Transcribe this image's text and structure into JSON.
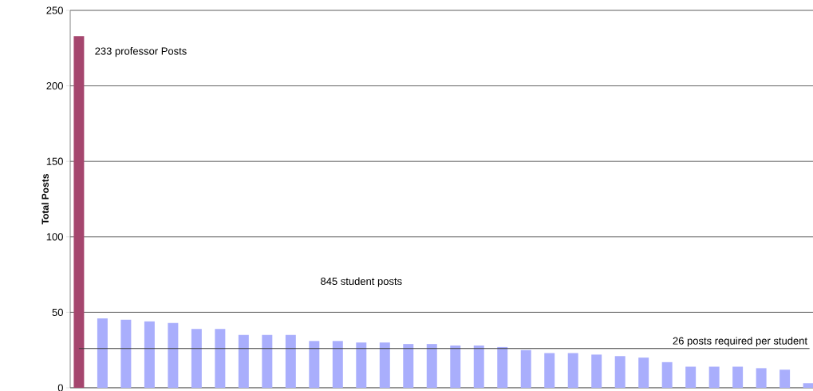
{
  "chart_data": {
    "type": "bar",
    "ylabel": "Total Posts",
    "categories": [
      null,
      null,
      null,
      null,
      null,
      null,
      null,
      null,
      null,
      null,
      null,
      null,
      null,
      null,
      null,
      null,
      null,
      null,
      null,
      null,
      null,
      null,
      null,
      null,
      null,
      null,
      null,
      null,
      null,
      null,
      null,
      null
    ],
    "values": [
      233,
      46,
      45,
      44,
      43,
      39,
      39,
      35,
      35,
      35,
      31,
      31,
      30,
      30,
      29,
      29,
      28,
      28,
      27,
      25,
      23,
      23,
      22,
      21,
      20,
      17,
      14,
      14,
      14,
      13,
      12,
      3
    ],
    "colors": [
      "#a5466e",
      "#a9aefc",
      "#a9aefc",
      "#a9aefc",
      "#a9aefc",
      "#a9aefc",
      "#a9aefc",
      "#a9aefc",
      "#a9aefc",
      "#a9aefc",
      "#a9aefc",
      "#a9aefc",
      "#a9aefc",
      "#a9aefc",
      "#a9aefc",
      "#a9aefc",
      "#a9aefc",
      "#a9aefc",
      "#a9aefc",
      "#a9aefc",
      "#a9aefc",
      "#a9aefc",
      "#a9aefc",
      "#a9aefc",
      "#a9aefc",
      "#a9aefc",
      "#a9aefc",
      "#a9aefc",
      "#a9aefc",
      "#a9aefc",
      "#a9aefc",
      "#a9aefc"
    ],
    "ylim": [
      0,
      250
    ],
    "yticks": [
      0,
      50,
      100,
      150,
      200,
      250
    ],
    "grid": "y",
    "annotations": [
      "233 professor Posts",
      "845 student posts"
    ],
    "ref_lines": [
      {
        "axis": "y",
        "value": 26,
        "label": "26 posts required per student",
        "color": "#3a3a3a"
      }
    ]
  }
}
